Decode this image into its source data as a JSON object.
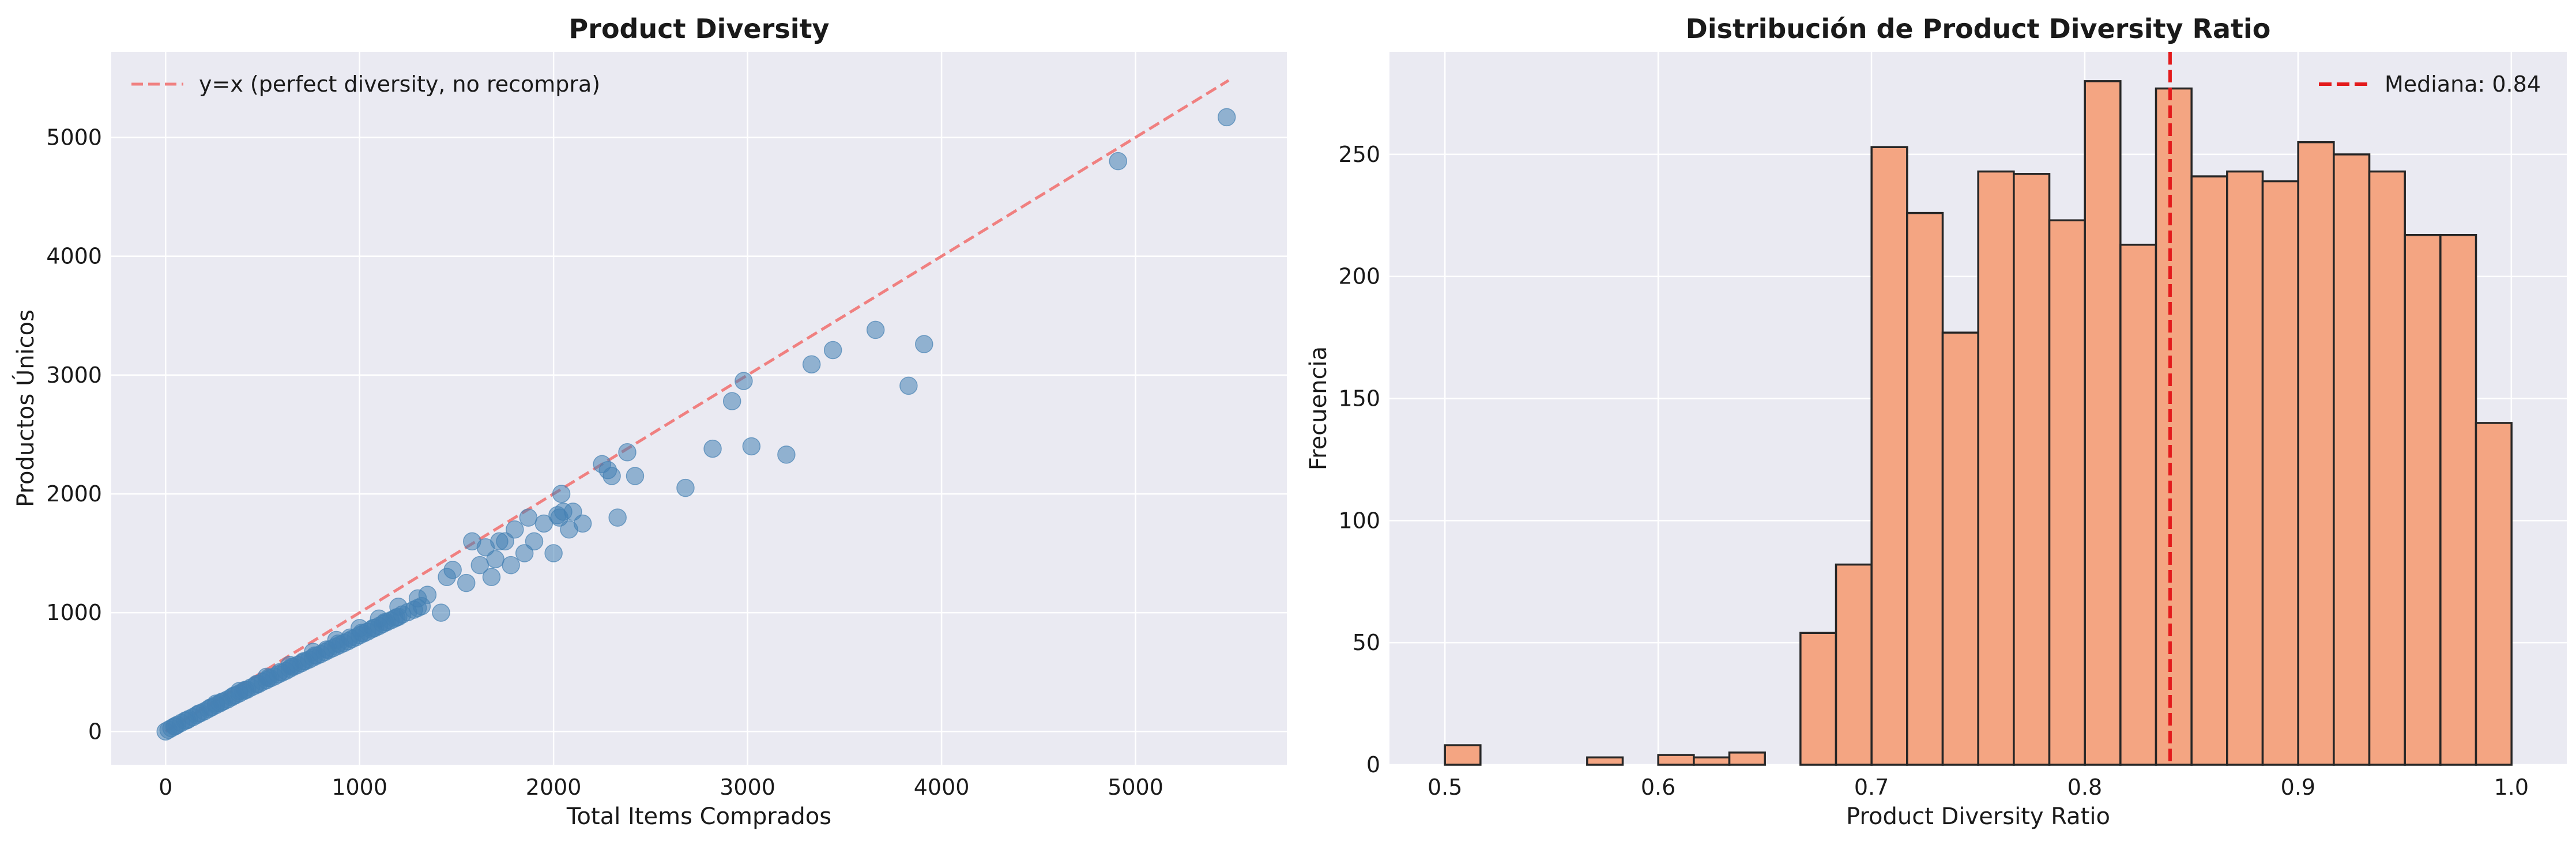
{
  "chart_data": [
    {
      "type": "scatter",
      "title": "Product Diversity",
      "xlabel": "Total Items Comprados",
      "ylabel": "Productos Únicos",
      "xlim": [
        -280,
        5780
      ],
      "ylim": [
        -280,
        5720
      ],
      "xticks": [
        0,
        1000,
        2000,
        3000,
        4000,
        5000
      ],
      "yticks": [
        0,
        1000,
        2000,
        3000,
        4000,
        5000
      ],
      "grid": true,
      "legend_position": "top-left",
      "reference_line": {
        "label": "y=x (perfect diversity, no recompra)",
        "from": [
          0,
          0
        ],
        "to": [
          5480,
          5480
        ],
        "color": "#f08080",
        "style": "dashed"
      },
      "point_color": "#4682b4",
      "series": [
        {
          "x": [
            0,
            15,
            30,
            45,
            60,
            80,
            100,
            120,
            140,
            160,
            180,
            200,
            220,
            240,
            260,
            280,
            300,
            320,
            340,
            360,
            380,
            400,
            420,
            440,
            460,
            480,
            500,
            520,
            540,
            560,
            580,
            600,
            620,
            640,
            660,
            680,
            700,
            720,
            740,
            760,
            780,
            800,
            820,
            840,
            860,
            880,
            900,
            920,
            940,
            960,
            980,
            1000,
            1020,
            1040,
            1060,
            1080,
            1100,
            1120,
            1140,
            1160,
            1180,
            1200,
            1220,
            1250,
            1280,
            1300,
            1320,
            50,
            110,
            170,
            230,
            290,
            350,
            410,
            470,
            530,
            590,
            650,
            710,
            770,
            830,
            890,
            950,
            1010,
            1070,
            1130,
            1190,
            260,
            380,
            520,
            640,
            760,
            880,
            1000,
            1100,
            1200,
            1300,
            1350,
            1420,
            1450,
            1480,
            1550,
            1580,
            1620,
            1650,
            1680,
            1700,
            1720,
            1750,
            1780,
            1800,
            1850,
            1870,
            1900,
            1950,
            2000,
            2020,
            2030,
            2040,
            2050,
            2080,
            2100,
            2150,
            2250,
            2280,
            2300,
            2330,
            2380,
            2420,
            2680,
            2820,
            2920,
            2980,
            3020,
            3200,
            3330,
            3440,
            3660,
            3830,
            3910,
            4910,
            5470
          ],
          "y": [
            0,
            14,
            28,
            42,
            55,
            72,
            90,
            105,
            120,
            138,
            155,
            170,
            188,
            205,
            222,
            238,
            255,
            270,
            288,
            305,
            320,
            338,
            352,
            370,
            385,
            400,
            418,
            432,
            448,
            462,
            480,
            495,
            510,
            528,
            545,
            560,
            575,
            592,
            605,
            622,
            638,
            652,
            668,
            685,
            700,
            715,
            730,
            745,
            760,
            778,
            792,
            810,
            825,
            840,
            858,
            872,
            888,
            905,
            920,
            935,
            950,
            965,
            985,
            1005,
            1025,
            1040,
            1055,
            45,
            95,
            150,
            200,
            250,
            300,
            350,
            400,
            450,
            500,
            545,
            590,
            640,
            690,
            740,
            790,
            830,
            870,
            920,
            960,
            235,
            340,
            460,
            560,
            670,
            770,
            870,
            950,
            1050,
            1120,
            1150,
            1000,
            1300,
            1360,
            1250,
            1600,
            1400,
            1550,
            1300,
            1450,
            1600,
            1600,
            1400,
            1700,
            1500,
            1800,
            1600,
            1750,
            1500,
            1820,
            1800,
            2000,
            1850,
            1700,
            1850,
            1750,
            2250,
            2200,
            2150,
            1800,
            2350,
            2150,
            2050,
            2380,
            2780,
            2950,
            2400,
            2330,
            3090,
            3210,
            3380,
            2910,
            3260,
            4800,
            5170
          ]
        }
      ]
    },
    {
      "type": "bar",
      "subtype": "histogram",
      "title": "Distribución de Product Diversity Ratio",
      "xlabel": "Product Diversity Ratio",
      "ylabel": "Frecuencia",
      "xlim": [
        0.474,
        1.026
      ],
      "ylim": [
        0,
        292
      ],
      "xticks": [
        0.5,
        0.6,
        0.7,
        0.8,
        0.9,
        1.0
      ],
      "xtick_labels": [
        "0.5",
        "0.6",
        "0.7",
        "0.8",
        "0.9",
        "1.0"
      ],
      "yticks": [
        0,
        50,
        100,
        150,
        200,
        250
      ],
      "grid": true,
      "legend_position": "top-right",
      "bar_color": "#f4a582",
      "bar_edge_color": "#262626",
      "bins_start": 0.5,
      "bin_width": 0.01667,
      "values": [
        8,
        0,
        0,
        0,
        3,
        0,
        4,
        3,
        5,
        0,
        54,
        82,
        253,
        226,
        177,
        243,
        242,
        223,
        280,
        213,
        277,
        241,
        243,
        239,
        255,
        250,
        243,
        217,
        217,
        140
      ],
      "median_line": {
        "label": "Mediana: 0.84",
        "value": 0.84,
        "color": "#e31a1c",
        "style": "dashed"
      }
    }
  ]
}
